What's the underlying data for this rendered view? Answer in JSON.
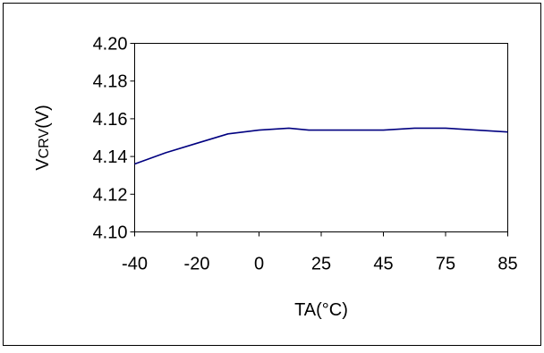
{
  "chart_data": {
    "type": "line",
    "x_tick_labels": [
      "-40",
      "-20",
      "0",
      "25",
      "45",
      "75",
      "85"
    ],
    "y_ticks": [
      4.1,
      4.12,
      4.14,
      4.16,
      4.18,
      4.2
    ],
    "y_tick_labels": [
      "4.10",
      "4.12",
      "4.14",
      "4.16",
      "4.18",
      "4.20"
    ],
    "ylim": [
      4.1,
      4.2
    ],
    "xlabel": "TA(°C)",
    "ylabel_main": "V",
    "ylabel_sub": "CRV",
    "ylabel_unit": "(V)",
    "grid": false,
    "series": [
      {
        "color": "#000080",
        "points": [
          {
            "x": -40,
            "y": 4.136
          },
          {
            "x": -30,
            "y": 4.142
          },
          {
            "x": -20,
            "y": 4.147
          },
          {
            "x": -10,
            "y": 4.152
          },
          {
            "x": 0,
            "y": 4.154
          },
          {
            "x": 12,
            "y": 4.155
          },
          {
            "x": 20,
            "y": 4.154
          },
          {
            "x": 25,
            "y": 4.154
          },
          {
            "x": 45,
            "y": 4.154
          },
          {
            "x": 60,
            "y": 4.155
          },
          {
            "x": 75,
            "y": 4.155
          },
          {
            "x": 85,
            "y": 4.153
          }
        ]
      }
    ]
  }
}
